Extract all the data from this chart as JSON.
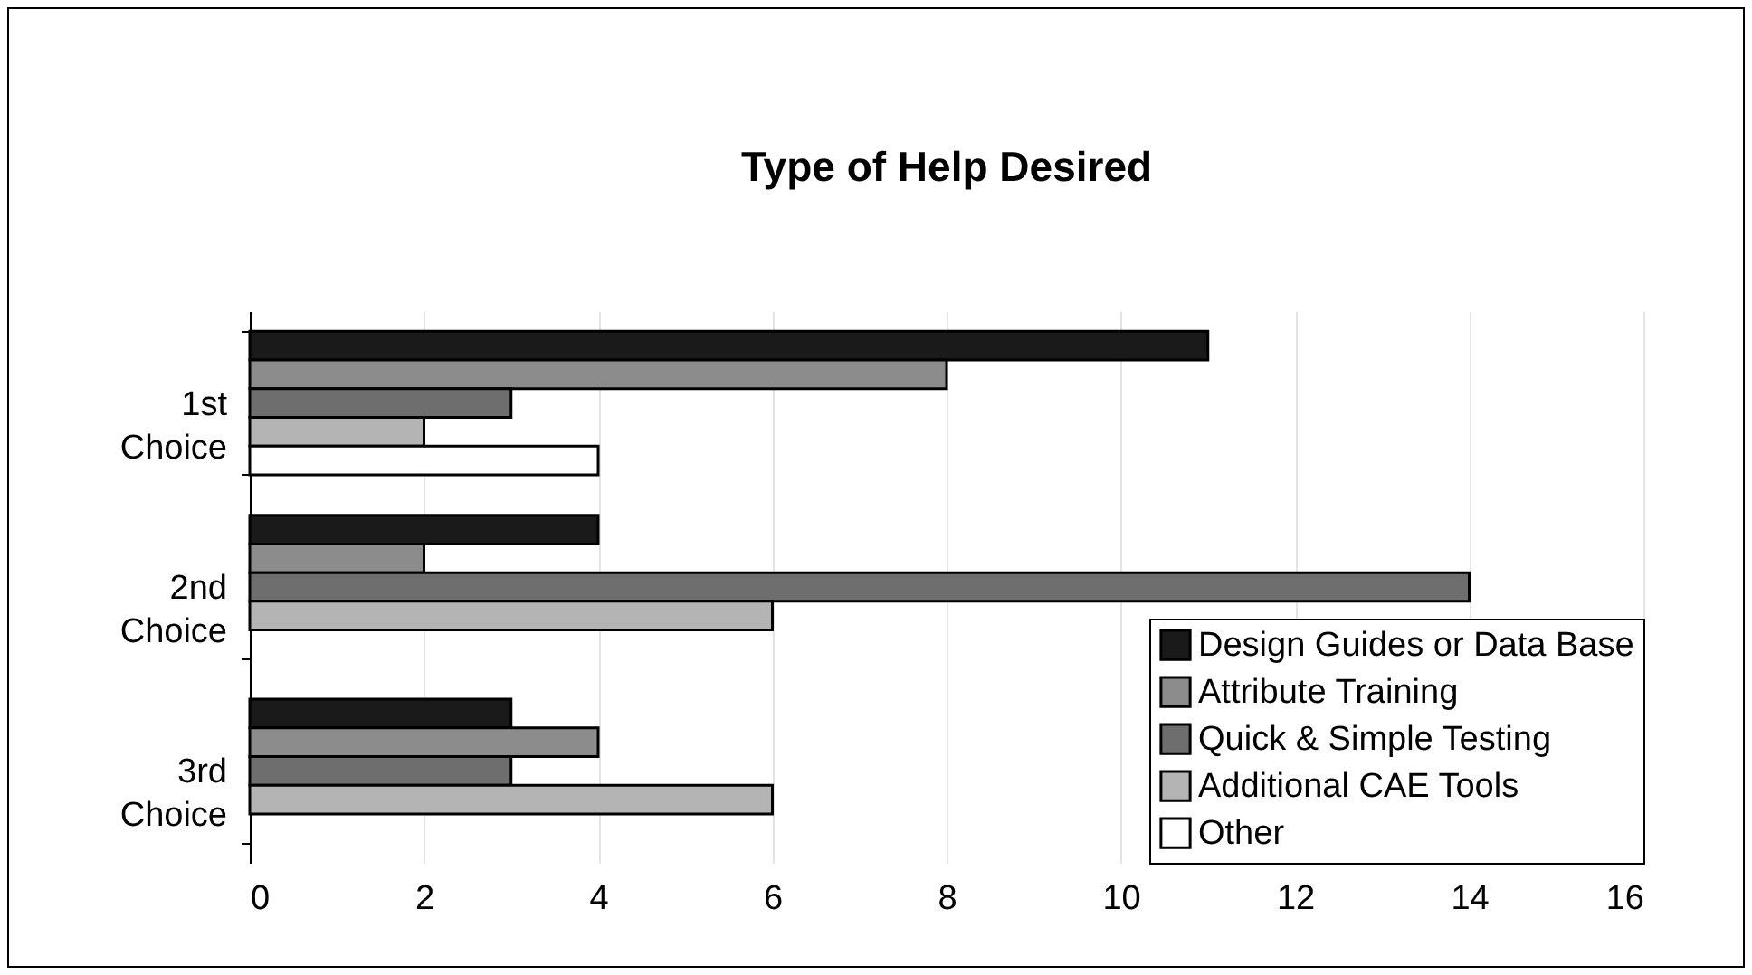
{
  "chart_data": {
    "type": "bar",
    "orientation": "horizontal",
    "title": "Type of Help Desired",
    "categories": [
      "1st Choice",
      "2nd Choice",
      "3rd Choice"
    ],
    "series": [
      {
        "name": "Design Guides or Data Base",
        "color": "#1a1a1a",
        "values": [
          11,
          4,
          3
        ]
      },
      {
        "name": "Attribute Training",
        "color": "#8c8c8c",
        "values": [
          8,
          2,
          4
        ]
      },
      {
        "name": "Quick & Simple Testing",
        "color": "#6e6e6e",
        "values": [
          3,
          14,
          3
        ]
      },
      {
        "name": "Additional CAE Tools",
        "color": "#b4b4b4",
        "values": [
          2,
          6,
          6
        ]
      },
      {
        "name": "Other",
        "color": "#ffffff",
        "values": [
          4,
          null,
          null
        ]
      }
    ],
    "xlim": [
      0,
      16
    ],
    "xticks": [
      0,
      2,
      4,
      6,
      8,
      10,
      12,
      14,
      16
    ],
    "grid": "x",
    "legend": "bottom right"
  }
}
